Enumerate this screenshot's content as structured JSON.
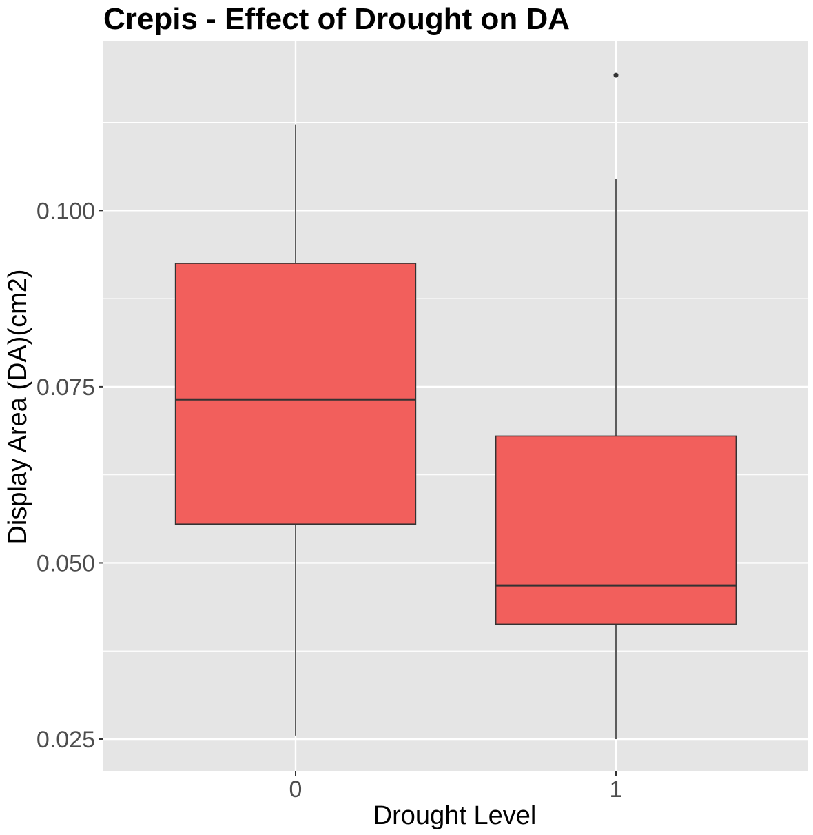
{
  "chart_data": {
    "type": "boxplot",
    "title": "Crepis - Effect of Drought on DA",
    "xlabel": "Drought Level",
    "ylabel": "Display Area (DA)(cm2)",
    "categories": [
      "0",
      "1"
    ],
    "ylim": [
      0.0205,
      0.124
    ],
    "yticks": [
      0.025,
      0.05,
      0.075,
      0.1
    ],
    "ytick_labels": [
      "0.025",
      "0.050",
      "0.075",
      "0.100"
    ],
    "boxes": [
      {
        "category": "0",
        "whisker_low": 0.0255,
        "q1": 0.0555,
        "median": 0.0732,
        "q3": 0.0925,
        "whisker_high": 0.1122,
        "outliers": []
      },
      {
        "category": "1",
        "whisker_low": 0.025,
        "q1": 0.0413,
        "median": 0.0468,
        "q3": 0.068,
        "whisker_high": 0.1045,
        "outliers": [
          0.1192
        ]
      }
    ],
    "grid": true,
    "legend": "none",
    "colors": {
      "box_fill": "#f25f5c",
      "box_edge": "#333333",
      "panel_bg": "#e5e5e5",
      "grid": "#ffffff"
    }
  }
}
